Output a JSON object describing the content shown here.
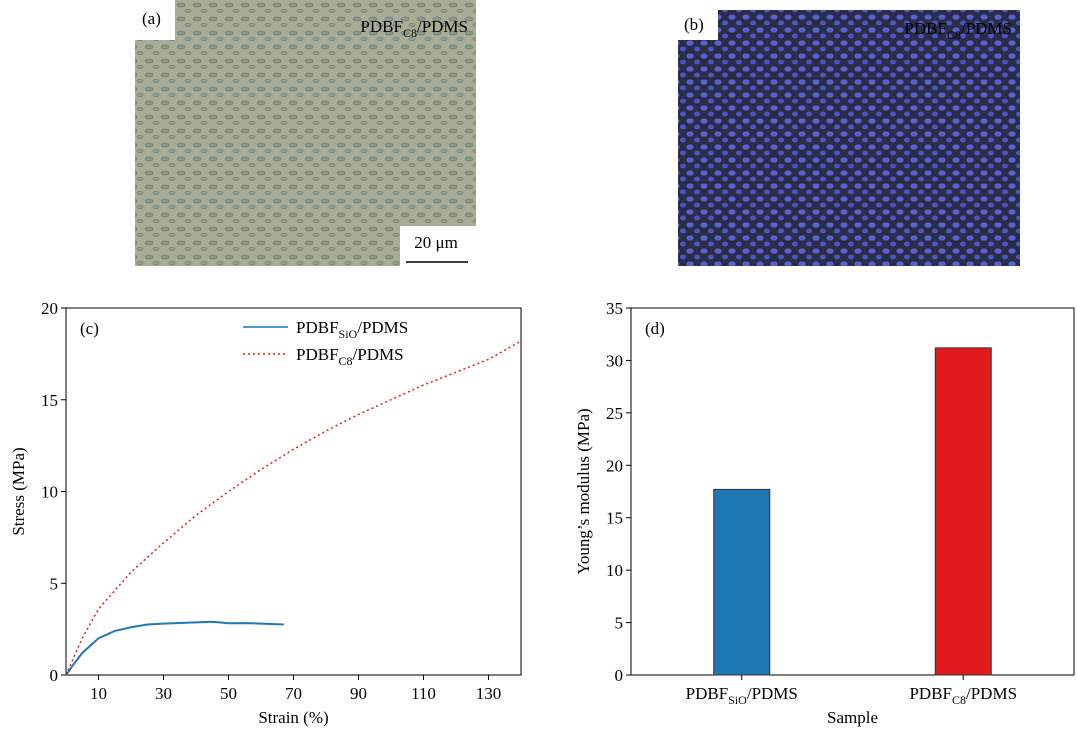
{
  "images": [
    {
      "panel": "(a)",
      "caption": [
        "PDBF",
        "C8",
        "/PDMS"
      ],
      "scale_bar": "20 μm"
    },
    {
      "panel": "(b)",
      "caption": [
        "PDBF",
        "C8",
        "/PDMS"
      ]
    }
  ],
  "chart_data": [
    {
      "type": "line",
      "panel": "(c)",
      "xlabel": "Strain (%)",
      "ylabel": "Stress (MPa)",
      "xlim": [
        0,
        140
      ],
      "xticks": [
        10,
        30,
        50,
        70,
        90,
        110,
        130
      ],
      "ylim": [
        0,
        20
      ],
      "yticks": [
        0,
        5,
        10,
        15,
        20
      ],
      "series": [
        {
          "name": [
            "PDBF",
            "SiO",
            "/PDMS"
          ],
          "color": "#1f77b4",
          "style": "solid",
          "x": [
            0,
            2,
            5,
            10,
            15,
            20,
            25,
            30,
            40,
            45,
            50,
            55,
            60,
            67
          ],
          "values": [
            0,
            0.5,
            1.2,
            2.0,
            2.4,
            2.6,
            2.75,
            2.8,
            2.87,
            2.9,
            2.82,
            2.83,
            2.8,
            2.75
          ]
        },
        {
          "name": [
            "PDBF",
            "C8",
            "/PDMS"
          ],
          "color": "#e31a1c",
          "style": "dotted",
          "x": [
            0,
            5,
            10,
            20,
            30,
            40,
            50,
            60,
            70,
            80,
            90,
            100,
            110,
            120,
            130,
            140
          ],
          "values": [
            0,
            2.0,
            3.6,
            5.6,
            7.2,
            8.7,
            10.0,
            11.2,
            12.3,
            13.3,
            14.2,
            15.0,
            15.8,
            16.5,
            17.2,
            18.2
          ]
        }
      ]
    },
    {
      "type": "bar",
      "panel": "(d)",
      "xlabel": "Sample",
      "ylabel": "Young’s modulus (MPa)",
      "categories": [
        [
          "PDBF",
          "SiO",
          "/PDMS"
        ],
        [
          "PDBF",
          "C8",
          "/PDMS"
        ]
      ],
      "values": [
        17.7,
        31.2
      ],
      "colors": [
        "#1f77b4",
        "#e31a1c"
      ],
      "ylim": [
        0,
        35
      ],
      "yticks": [
        0,
        5,
        10,
        15,
        20,
        25,
        30,
        35
      ]
    }
  ]
}
